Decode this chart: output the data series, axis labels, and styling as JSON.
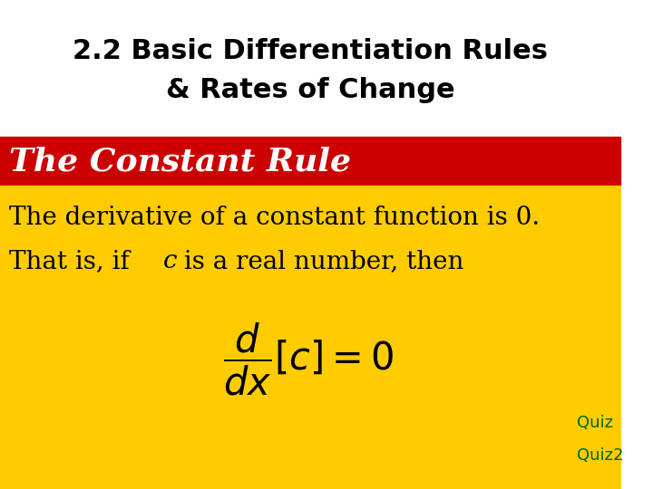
{
  "title_line1": "2.2 Basic Differentiation Rules",
  "title_line2": "& Rates of Change",
  "title_fontsize": 22,
  "title_color": "#000000",
  "title_bg": "#ffffff",
  "red_banner_text": "The Constant Rule",
  "red_banner_color": "#cc0000",
  "red_banner_text_color": "#ffffff",
  "red_banner_fontsize": 26,
  "yellow_bg": "#ffcc00",
  "body_text1": "The derivative of a constant function is 0.",
  "body_text2_part1": "That is, if ",
  "body_text2_italic": "c",
  "body_text2_part2": " is a real number, then",
  "body_fontsize": 20,
  "body_text_color": "#000000",
  "formula": "$\\dfrac{d}{dx}[c]=0$",
  "formula_fontsize": 30,
  "quiz_text": "Quiz",
  "quiz2_text": "Quiz2",
  "quiz_color": "#006600",
  "quiz_fontsize": 13,
  "fig_width": 7.2,
  "fig_height": 5.4,
  "dpi": 100
}
